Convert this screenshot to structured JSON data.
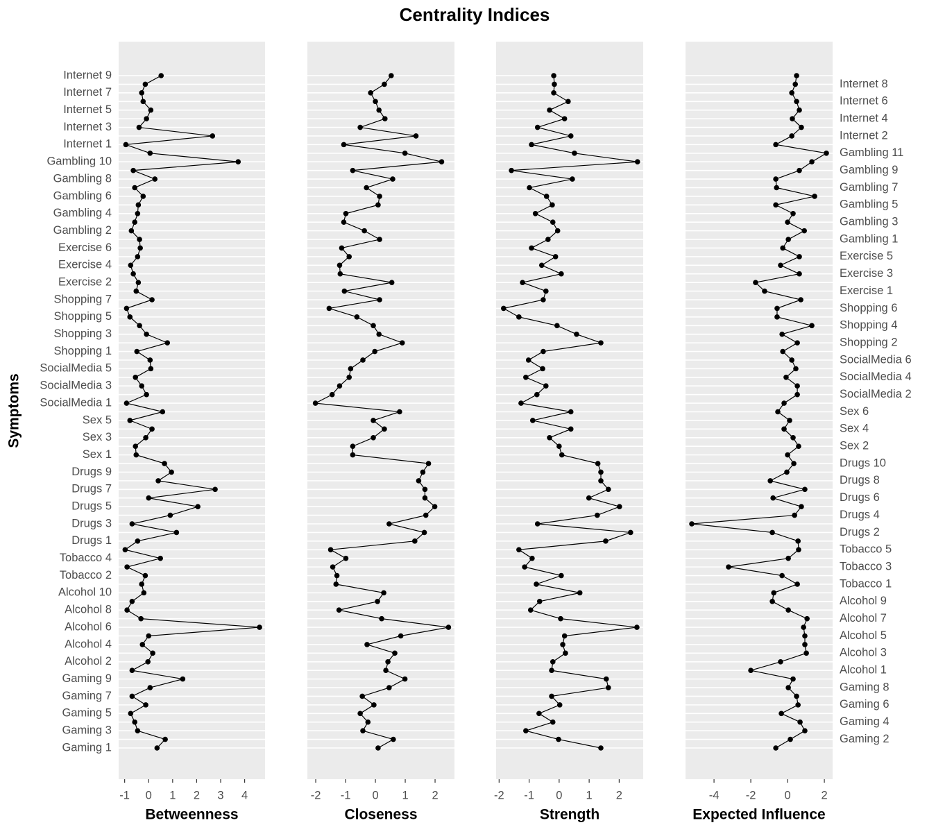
{
  "chart_data": {
    "type": "line",
    "title": "Centrality Indices",
    "ylabel": "Symptoms",
    "categories": [
      "Gaming 1",
      "Gaming 2",
      "Gaming 3",
      "Gaming 4",
      "Gaming 5",
      "Gaming 6",
      "Gaming 7",
      "Gaming 8",
      "Gaming 9",
      "Alcohol 1",
      "Alcohol 2",
      "Alcohol 3",
      "Alcohol 4",
      "Alcohol 5",
      "Alcohol 6",
      "Alcohol 7",
      "Alcohol 8",
      "Alcohol 9",
      "Alcohol 10",
      "Tobacco 1",
      "Tobacco 2",
      "Tobacco 3",
      "Tobacco 4",
      "Tobacco 5",
      "Drugs 1",
      "Drugs 2",
      "Drugs 3",
      "Drugs 4",
      "Drugs 5",
      "Drugs 6",
      "Drugs 7",
      "Drugs 8",
      "Drugs 9",
      "Drugs 10",
      "Sex 1",
      "Sex 2",
      "Sex 3",
      "Sex 4",
      "Sex 5",
      "Sex 6",
      "SocialMedia 1",
      "SocialMedia 2",
      "SocialMedia 3",
      "SocialMedia 4",
      "SocialMedia 5",
      "SocialMedia 6",
      "Shopping 1",
      "Shopping 2",
      "Shopping 3",
      "Shopping 4",
      "Shopping 5",
      "Shopping 6",
      "Shopping 7",
      "Exercise 1",
      "Exercise 2",
      "Exercise 3",
      "Exercise 4",
      "Exercise 5",
      "Exercise 6",
      "Gambling 1",
      "Gambling 2",
      "Gambling 3",
      "Gambling 4",
      "Gambling 5",
      "Gambling 6",
      "Gambling 7",
      "Gambling 8",
      "Gambling 9",
      "Gambling 10",
      "Gambling 11",
      "Internet 1",
      "Internet 2",
      "Internet 3",
      "Internet 4",
      "Internet 5",
      "Internet 6",
      "Internet 7",
      "Internet 8",
      "Internet 9"
    ],
    "color": "#000000",
    "grid": true,
    "panels": [
      {
        "xlabel": "Betweenness",
        "xlim": [
          -1.25,
          4.85
        ],
        "xticks": [
          -1,
          0,
          1,
          2,
          3,
          4
        ],
        "values": [
          0.35,
          0.69,
          -0.46,
          -0.58,
          -0.75,
          -0.12,
          -0.69,
          0.06,
          1.42,
          -0.69,
          -0.03,
          0.17,
          -0.26,
          0,
          4.62,
          -0.32,
          -0.9,
          -0.69,
          -0.2,
          -0.29,
          -0.14,
          -0.9,
          0.49,
          -0.98,
          -0.46,
          1.16,
          -0.69,
          0.9,
          2.05,
          0,
          2.77,
          0.4,
          0.95,
          0.66,
          -0.52,
          -0.55,
          -0.12,
          0.14,
          -0.78,
          0.58,
          -0.92,
          -0.09,
          -0.29,
          -0.55,
          0.09,
          0.06,
          -0.49,
          0.78,
          -0.09,
          -0.38,
          -0.78,
          -0.92,
          0.14,
          -0.52,
          -0.43,
          -0.64,
          -0.75,
          -0.46,
          -0.35,
          -0.38,
          -0.72,
          -0.58,
          -0.46,
          -0.43,
          -0.23,
          -0.58,
          0.26,
          -0.64,
          3.73,
          0.06,
          -0.95,
          2.66,
          -0.4,
          -0.09,
          0.09,
          -0.23,
          -0.29,
          -0.14,
          0.52
        ]
      },
      {
        "xlabel": "Closeness",
        "xlim": [
          -2.28,
          2.65
        ],
        "xticks": [
          -2,
          -1,
          0,
          1,
          2
        ],
        "values": [
          0.09,
          0.6,
          -0.42,
          -0.25,
          -0.51,
          -0.05,
          -0.44,
          0.46,
          0.99,
          0.35,
          0.42,
          0.65,
          -0.28,
          0.85,
          2.45,
          0.21,
          -1.22,
          0.07,
          0.28,
          -1.32,
          -1.29,
          -1.43,
          -0.99,
          -1.5,
          1.32,
          1.64,
          0.46,
          1.69,
          1.99,
          1.66,
          1.66,
          1.45,
          1.59,
          1.78,
          -0.76,
          -0.76,
          -0.07,
          0.3,
          -0.07,
          0.81,
          -2.01,
          -1.45,
          -1.2,
          -0.88,
          -0.83,
          -0.42,
          -0.02,
          0.9,
          0.12,
          -0.07,
          -0.62,
          -1.55,
          0.14,
          -1.04,
          0.55,
          -1.18,
          -1.2,
          -0.88,
          -1.13,
          0.14,
          -0.37,
          -1.06,
          -0.99,
          0.09,
          0.14,
          -0.3,
          0.58,
          -0.76,
          2.22,
          0.99,
          -1.06,
          1.36,
          -0.51,
          0.32,
          0.12,
          0,
          -0.16,
          0.3,
          0.53
        ]
      },
      {
        "xlabel": "Strength",
        "xlim": [
          -2.1,
          2.8
        ],
        "xticks": [
          -2,
          -1,
          0,
          1,
          2
        ],
        "values": [
          1.39,
          -0.02,
          -1.11,
          -0.21,
          -0.67,
          0.02,
          -0.25,
          1.64,
          1.57,
          -0.25,
          -0.21,
          0.21,
          0.12,
          0.18,
          2.59,
          0.05,
          -0.95,
          -0.65,
          0.69,
          -0.76,
          0.07,
          -1.15,
          -0.9,
          -1.34,
          1.55,
          2.38,
          -0.72,
          1.27,
          2.01,
          0.99,
          1.64,
          1.39,
          1.39,
          1.29,
          0.09,
          0,
          -0.32,
          0.39,
          -0.88,
          0.39,
          -1.27,
          -0.74,
          -0.44,
          -1.11,
          -0.55,
          -1.02,
          -0.53,
          1.39,
          0.58,
          -0.07,
          -1.34,
          -1.85,
          -0.53,
          -0.44,
          -1.22,
          0.07,
          -0.58,
          -0.12,
          -0.92,
          -0.37,
          -0.05,
          -0.21,
          -0.79,
          -0.23,
          -0.42,
          -0.99,
          0.44,
          -1.59,
          2.61,
          0.51,
          -0.92,
          0.39,
          -0.72,
          0.18,
          -0.32,
          0.3,
          -0.18,
          -0.16,
          -0.18
        ]
      },
      {
        "xlabel": "Expected Influence",
        "xlim": [
          -5.55,
          2.45
        ],
        "xticks": [
          -4,
          -2,
          0,
          2
        ],
        "values": [
          -0.64,
          0.15,
          0.94,
          0.68,
          -0.34,
          0.57,
          0.49,
          0.04,
          0.3,
          -2.0,
          -0.38,
          1.02,
          0.94,
          0.94,
          0.87,
          1.06,
          0.04,
          -0.83,
          -0.75,
          0.53,
          -0.3,
          -3.21,
          0.04,
          0.6,
          0.57,
          -0.83,
          -5.21,
          0.38,
          0.75,
          -0.79,
          0.94,
          -0.94,
          -0.04,
          0.34,
          0,
          0.6,
          0.3,
          -0.19,
          0.11,
          -0.53,
          -0.19,
          0.53,
          0.53,
          -0.08,
          0.45,
          0.23,
          -0.26,
          0.53,
          -0.3,
          1.32,
          -0.57,
          -0.57,
          0.72,
          -1.25,
          -1.74,
          0.64,
          -0.38,
          0.64,
          -0.26,
          0.04,
          0.91,
          0,
          0.3,
          -0.64,
          1.47,
          -0.6,
          -0.64,
          0.64,
          1.32,
          2.11,
          -0.64,
          0.23,
          0.75,
          0.26,
          0.64,
          0.49,
          0.23,
          0.42,
          0.49
        ]
      }
    ]
  }
}
